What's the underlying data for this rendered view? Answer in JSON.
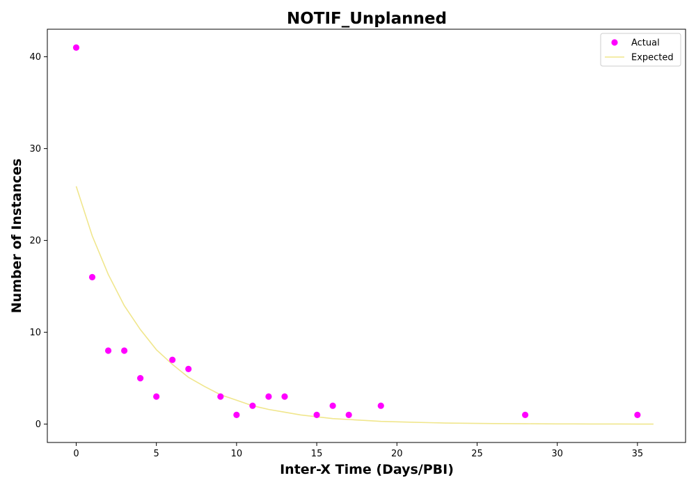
{
  "chart_data": {
    "type": "scatter",
    "title": "NOTIF_Unplanned",
    "xlabel": "Inter-X Time (Days/PBI)",
    "ylabel": "Number of Instances",
    "xlim": [
      -1.8,
      38
    ],
    "ylim": [
      -2,
      43
    ],
    "xticks": [
      0,
      5,
      10,
      15,
      20,
      25,
      30,
      35
    ],
    "yticks": [
      0,
      10,
      20,
      30,
      40
    ],
    "grid": false,
    "legend_position": "top-right",
    "series": [
      {
        "name": "Actual",
        "kind": "scatter",
        "color": "#ff00ff",
        "points": [
          [
            0,
            41
          ],
          [
            1,
            16
          ],
          [
            2,
            8
          ],
          [
            3,
            8
          ],
          [
            4,
            5
          ],
          [
            5,
            3
          ],
          [
            6,
            7
          ],
          [
            7,
            6
          ],
          [
            9,
            3
          ],
          [
            10,
            1
          ],
          [
            11,
            2
          ],
          [
            12,
            3
          ],
          [
            13,
            3
          ],
          [
            15,
            1
          ],
          [
            16,
            2
          ],
          [
            17,
            1
          ],
          [
            19,
            2
          ],
          [
            28,
            1
          ],
          [
            35,
            1
          ]
        ]
      },
      {
        "name": "Expected",
        "kind": "line",
        "color": "#f0e68c",
        "points": [
          [
            0,
            25.9
          ],
          [
            1,
            20.5
          ],
          [
            2,
            16.3
          ],
          [
            3,
            12.9
          ],
          [
            4,
            10.3
          ],
          [
            5,
            8.1
          ],
          [
            6,
            6.5
          ],
          [
            7,
            5.1
          ],
          [
            8,
            4.1
          ],
          [
            9,
            3.2
          ],
          [
            10,
            2.6
          ],
          [
            11,
            2.0
          ],
          [
            12,
            1.6
          ],
          [
            13,
            1.3
          ],
          [
            14,
            1.0
          ],
          [
            15,
            0.8
          ],
          [
            16,
            0.6
          ],
          [
            17,
            0.5
          ],
          [
            18,
            0.4
          ],
          [
            19,
            0.3
          ],
          [
            20,
            0.25
          ],
          [
            21,
            0.2
          ],
          [
            22,
            0.16
          ],
          [
            23,
            0.12
          ],
          [
            24,
            0.1
          ],
          [
            25,
            0.08
          ],
          [
            26,
            0.06
          ],
          [
            27,
            0.05
          ],
          [
            28,
            0.04
          ],
          [
            29,
            0.03
          ],
          [
            30,
            0.02
          ],
          [
            31,
            0.02
          ],
          [
            32,
            0.01
          ],
          [
            33,
            0.01
          ],
          [
            34,
            0.01
          ],
          [
            35,
            0.0
          ],
          [
            36,
            0.0
          ]
        ]
      }
    ]
  }
}
